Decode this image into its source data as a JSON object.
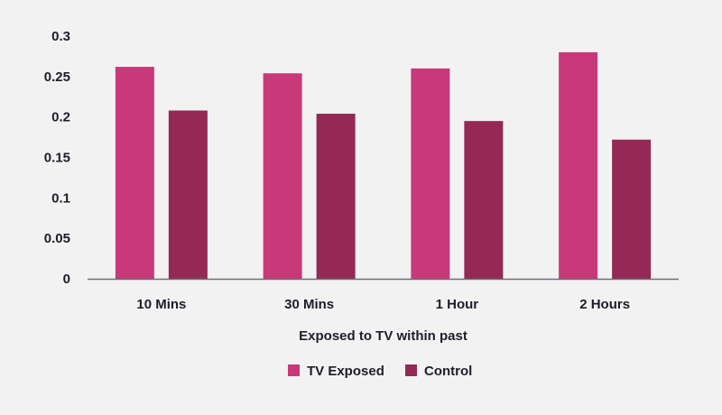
{
  "chart_data": {
    "type": "bar",
    "title": "",
    "xlabel": "Exposed to TV within past",
    "ylabel": "",
    "categories": [
      "10 Mins",
      "30 Mins",
      "1 Hour",
      "2 Hours"
    ],
    "series": [
      {
        "name": "TV Exposed",
        "color": "#c8397a",
        "values": [
          0.262,
          0.254,
          0.26,
          0.28
        ]
      },
      {
        "name": "Control",
        "color": "#932954",
        "values": [
          0.208,
          0.204,
          0.195,
          0.172
        ]
      }
    ],
    "ylim": [
      0,
      0.3
    ],
    "yticks": [
      0,
      0.05,
      0.1,
      0.15,
      0.2,
      0.25,
      0.3
    ],
    "ytick_labels": [
      "0",
      "0.05",
      "0.1",
      "0.15",
      "0.2",
      "0.25",
      "0.3"
    ],
    "grid": false,
    "legend_position": "bottom-center",
    "background": "#f2f2f3"
  }
}
